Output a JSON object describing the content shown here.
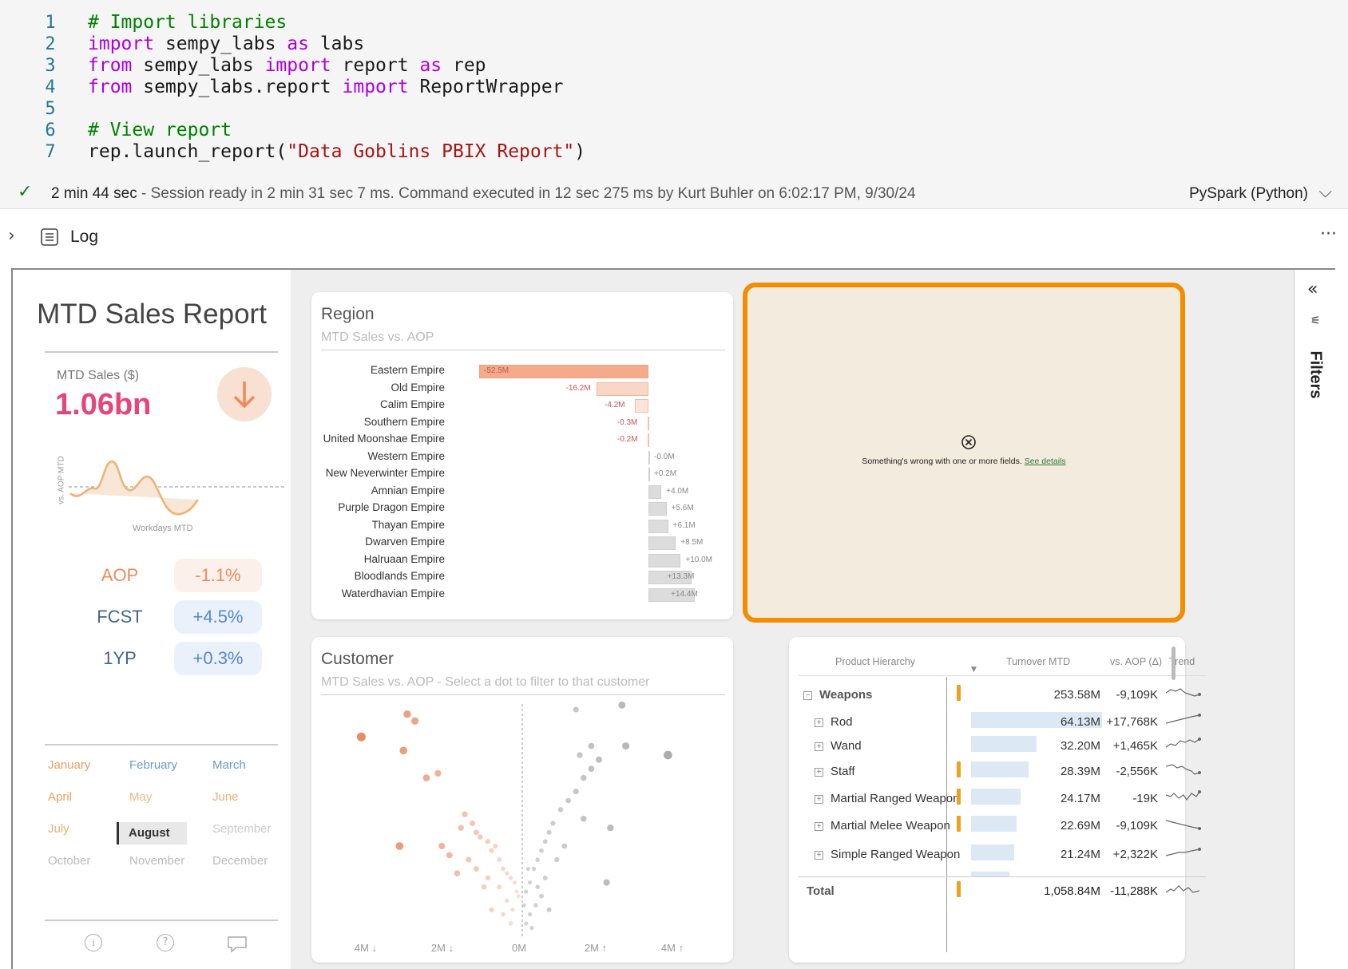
{
  "code": {
    "line_numbers": [
      "1",
      "2",
      "3",
      "4",
      "5",
      "6",
      "7"
    ],
    "lines": [
      [
        {
          "t": "# Import libraries",
          "c": "cm"
        }
      ],
      [
        {
          "t": "import",
          "c": "kw"
        },
        {
          "t": " sempy_labs ",
          "c": ""
        },
        {
          "t": "as",
          "c": "kw"
        },
        {
          "t": " labs",
          "c": ""
        }
      ],
      [
        {
          "t": "from",
          "c": "kw"
        },
        {
          "t": " sempy_labs ",
          "c": ""
        },
        {
          "t": "import",
          "c": "kw"
        },
        {
          "t": " report ",
          "c": ""
        },
        {
          "t": "as",
          "c": "kw"
        },
        {
          "t": " rep",
          "c": ""
        }
      ],
      [
        {
          "t": "from",
          "c": "kw"
        },
        {
          "t": " sempy_labs.report ",
          "c": ""
        },
        {
          "t": "import",
          "c": "kw"
        },
        {
          "t": " ReportWrapper",
          "c": ""
        }
      ],
      [],
      [
        {
          "t": "# View report",
          "c": "cm"
        }
      ],
      [
        {
          "t": "rep.launch_report(",
          "c": ""
        },
        {
          "t": "\"Data Goblins PBIX Report\"",
          "c": "st"
        },
        {
          "t": ")",
          "c": ""
        }
      ]
    ]
  },
  "status": {
    "duration": "2 min 44 sec",
    "message": " - Session ready in 2 min 31 sec 7 ms. Command executed in 12 sec 275 ms by Kurt Buhler on 6:02:17 PM, 9/30/24",
    "kernel": "PySpark (Python)"
  },
  "log": {
    "label": "Log",
    "more": "···"
  },
  "report": {
    "title": "MTD Sales Report",
    "kpi_label": "MTD Sales ($)",
    "kpi_value": "1.06bn",
    "spark_ylabel": "vs. AOP MTD",
    "spark_xlabel": "Workdays MTD",
    "comparisons": [
      {
        "label": "AOP",
        "value": "-1.1%"
      },
      {
        "label": "FCST",
        "value": "+4.5%"
      },
      {
        "label": "1YP",
        "value": "+0.3%"
      }
    ],
    "months": [
      "January",
      "February",
      "March",
      "April",
      "May",
      "June",
      "July",
      "August",
      "September",
      "October",
      "November",
      "December"
    ],
    "selected_month": "August"
  },
  "region": {
    "title": "Region",
    "subtitle": "MTD Sales vs. AOP"
  },
  "chart_data": {
    "type": "bar",
    "title": "Region",
    "subtitle": "MTD Sales vs. AOP",
    "categories": [
      "Eastern Empire",
      "Old Empire",
      "Calim Empire",
      "Southern Empire",
      "United Moonshae Empire",
      "Western Empire",
      "New Neverwinter Empire",
      "Amnian Empire",
      "Purple Dragon Empire",
      "Thayan Empire",
      "Dwarven Empire",
      "Halruaan Empire",
      "Bloodlands Empire",
      "Waterdhavian Empire"
    ],
    "values": [
      -52.5,
      -16.2,
      -4.2,
      -0.3,
      -0.2,
      -0.0,
      0.2,
      4.0,
      5.6,
      6.1,
      8.5,
      10.0,
      13.3,
      14.4
    ],
    "value_labels": [
      "-52.5M",
      "-16.2M",
      "-4.2M",
      "-0.3M",
      "-0.2M",
      "-0.0M",
      "+0.2M",
      "+4.0M",
      "+5.6M",
      "+6.1M",
      "+8.5M",
      "+10.0M",
      "+13.3M",
      "+14.4M"
    ],
    "units": "M"
  },
  "error": {
    "message": "Something's wrong with one or more fields.",
    "link": "See details"
  },
  "customer": {
    "title": "Customer",
    "subtitle": "MTD Sales vs. AOP - Select a dot to filter to that customer",
    "x_ticks": [
      "4M ↓",
      "2M ↓",
      "0M",
      "2M ↑",
      "4M ↑"
    ],
    "points": [
      [
        -4.2,
        0.88
      ],
      [
        -3.1,
        0.82
      ],
      [
        -2.5,
        0.7
      ],
      [
        -2.2,
        0.72
      ],
      [
        -3.0,
        0.98
      ],
      [
        -2.8,
        0.95
      ],
      [
        -1.5,
        0.54
      ],
      [
        -1.6,
        0.48
      ],
      [
        -1.3,
        0.5
      ],
      [
        -1.2,
        0.46
      ],
      [
        -1.1,
        0.44
      ],
      [
        -0.9,
        0.42
      ],
      [
        -0.8,
        0.38
      ],
      [
        -0.7,
        0.4
      ],
      [
        -0.6,
        0.34
      ],
      [
        -0.5,
        0.3
      ],
      [
        -0.4,
        0.28
      ],
      [
        -0.3,
        0.26
      ],
      [
        -0.2,
        0.24
      ],
      [
        -0.15,
        0.2
      ],
      [
        -0.1,
        0.18
      ],
      [
        -0.6,
        0.22
      ],
      [
        -0.9,
        0.26
      ],
      [
        -1.2,
        0.3
      ],
      [
        -0.4,
        0.16
      ],
      [
        -0.25,
        0.12
      ],
      [
        -1.9,
        0.36
      ],
      [
        -2.1,
        0.4
      ],
      [
        -3.2,
        0.4
      ],
      [
        -1.0,
        0.22
      ],
      [
        -0.5,
        0.1
      ],
      [
        -0.3,
        0.06
      ],
      [
        -1.7,
        0.28
      ],
      [
        -0.8,
        0.12
      ],
      [
        -1.4,
        0.34
      ],
      [
        0.1,
        0.2
      ],
      [
        0.2,
        0.24
      ],
      [
        0.3,
        0.3
      ],
      [
        0.4,
        0.34
      ],
      [
        0.5,
        0.38
      ],
      [
        0.6,
        0.42
      ],
      [
        0.7,
        0.46
      ],
      [
        0.8,
        0.5
      ],
      [
        1.0,
        0.56
      ],
      [
        1.2,
        0.6
      ],
      [
        1.4,
        0.64
      ],
      [
        1.6,
        0.7
      ],
      [
        1.8,
        0.74
      ],
      [
        2.0,
        0.78
      ],
      [
        1.5,
        0.8
      ],
      [
        1.8,
        0.84
      ],
      [
        2.7,
        0.84
      ],
      [
        1.4,
        1.0
      ],
      [
        2.6,
        1.02
      ],
      [
        0.2,
        0.1
      ],
      [
        0.35,
        0.14
      ],
      [
        0.5,
        0.18
      ],
      [
        0.1,
        0.06
      ],
      [
        0.25,
        0.04
      ],
      [
        0.6,
        0.26
      ],
      [
        0.9,
        0.34
      ],
      [
        1.1,
        0.4
      ],
      [
        0.15,
        0.3
      ],
      [
        0.4,
        0.22
      ],
      [
        3.8,
        0.8
      ],
      [
        2.3,
        0.48
      ],
      [
        1.6,
        0.52
      ],
      [
        2.2,
        0.24
      ],
      [
        0.05,
        0.14
      ],
      [
        0.7,
        0.12
      ]
    ]
  },
  "table": {
    "headers": [
      "Product Hierarchy",
      "Turnover MTD",
      "vs. AOP (Δ)",
      "Trend"
    ],
    "rows": [
      {
        "name": "Weapons",
        "value": "253.58M",
        "delta": "-9,109K",
        "warn": true,
        "bar": 0,
        "level": 0
      },
      {
        "name": "Rod",
        "value": "64.13M",
        "delta": "+17,768K",
        "warn": false,
        "bar": 1.0,
        "level": 1
      },
      {
        "name": "Wand",
        "value": "32.20M",
        "delta": "+1,465K",
        "warn": false,
        "bar": 0.5,
        "level": 1
      },
      {
        "name": "Staff",
        "value": "28.39M",
        "delta": "-2,556K",
        "warn": true,
        "bar": 0.44,
        "level": 1
      },
      {
        "name": "Martial Ranged Weapon",
        "value": "24.17M",
        "delta": "-19K",
        "warn": true,
        "bar": 0.38,
        "level": 1
      },
      {
        "name": "Martial Melee Weapon",
        "value": "22.69M",
        "delta": "-9,109K",
        "warn": true,
        "bar": 0.35,
        "level": 1
      },
      {
        "name": "Simple Ranged Weapon",
        "value": "21.24M",
        "delta": "+2,322K",
        "warn": false,
        "bar": 0.33,
        "level": 1
      }
    ],
    "total": {
      "name": "Total",
      "value": "1,058.84M",
      "delta": "-11,288K"
    }
  },
  "filters": {
    "label": "Filters"
  },
  "colors": {
    "accent": "#e8447a",
    "neg": "#f4b89e",
    "pos": "#d9d9d9",
    "orange": "#f28c00",
    "errbg": "#f3ebde"
  }
}
